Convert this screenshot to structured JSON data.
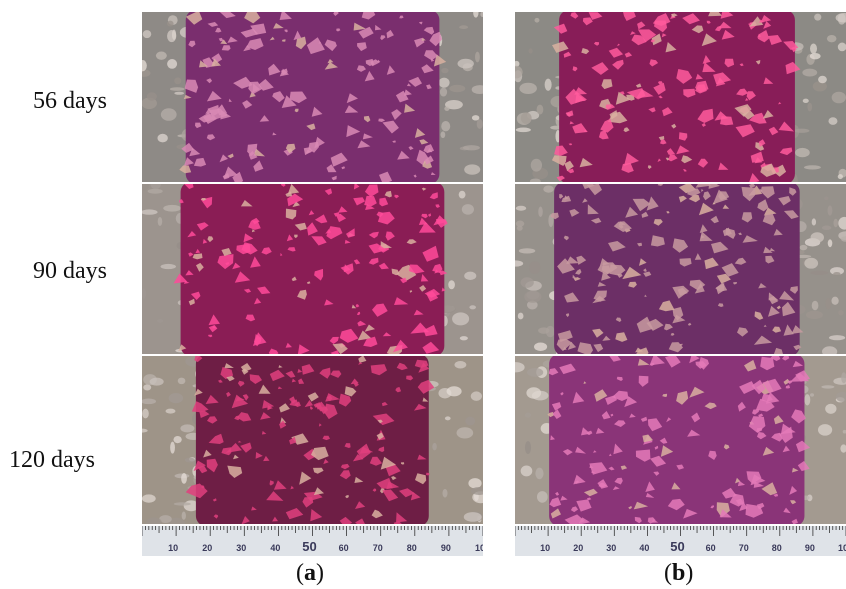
{
  "row_labels": [
    "56 days",
    "90 days",
    "120 days"
  ],
  "panels": [
    {
      "label": "a",
      "rows": [
        {
          "age": "56 days",
          "colors": {
            "base": "#7a2e6e",
            "agg": "#d98ab5",
            "edge": "#8e8a86"
          }
        },
        {
          "age": "90 days",
          "colors": {
            "base": "#8a1d55",
            "agg": "#ff4a9a",
            "edge": "#9c948e"
          }
        },
        {
          "age": "120 days",
          "colors": {
            "base": "#6e1e45",
            "agg": "#e0407e",
            "edge": "#9e9488"
          }
        }
      ]
    },
    {
      "label": "b",
      "rows": [
        {
          "age": "56 days",
          "colors": {
            "base": "#881d58",
            "agg": "#ff5a9c",
            "edge": "#8c8a85"
          }
        },
        {
          "age": "90 days",
          "colors": {
            "base": "#6c2f66",
            "agg": "#c89aa0",
            "edge": "#96918b"
          }
        },
        {
          "age": "120 days",
          "colors": {
            "base": "#8a3478",
            "agg": "#e47ab8",
            "edge": "#a39a90"
          }
        }
      ]
    }
  ],
  "ruler": {
    "ticks": [
      "10",
      "20",
      "30",
      "40",
      "50",
      "60",
      "70",
      "80",
      "90",
      "10"
    ]
  }
}
